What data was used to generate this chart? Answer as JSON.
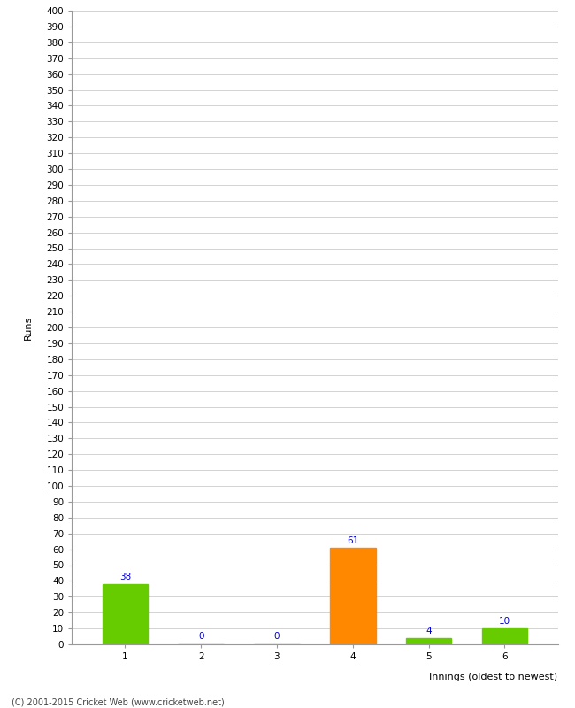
{
  "xlabel": "Innings (oldest to newest)",
  "ylabel": "Runs",
  "categories": [
    1,
    2,
    3,
    4,
    5,
    6
  ],
  "values": [
    38,
    0,
    0,
    61,
    4,
    10
  ],
  "bar_colors": [
    "#66cc00",
    "#66cc00",
    "#66cc00",
    "#ff8800",
    "#66cc00",
    "#66cc00"
  ],
  "ylim": [
    0,
    400
  ],
  "yticks": [
    0,
    10,
    20,
    30,
    40,
    50,
    60,
    70,
    80,
    90,
    100,
    110,
    120,
    130,
    140,
    150,
    160,
    170,
    180,
    190,
    200,
    210,
    220,
    230,
    240,
    250,
    260,
    270,
    280,
    290,
    300,
    310,
    320,
    330,
    340,
    350,
    360,
    370,
    380,
    390,
    400
  ],
  "label_color": "#0000cc",
  "label_fontsize": 7.5,
  "axis_label_fontsize": 8,
  "tick_fontsize": 7.5,
  "copyright": "(C) 2001-2015 Cricket Web (www.cricketweb.net)",
  "background_color": "#ffffff",
  "grid_color": "#cccccc"
}
